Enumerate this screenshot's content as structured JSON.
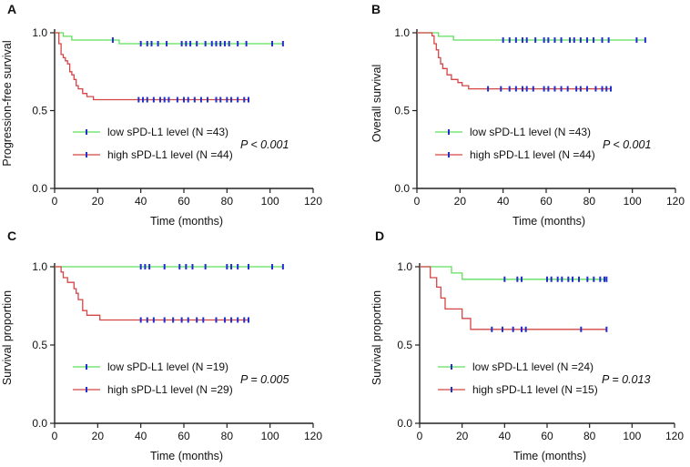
{
  "figure": {
    "colors": {
      "low": "#5de05d",
      "high": "#d64545",
      "censor": "#1f2fd0",
      "axis": "#222222"
    }
  },
  "chart_data": [
    {
      "panel": "A",
      "type": "line",
      "xlabel": "Time (months)",
      "ylabel": "Progression-free survival",
      "xlim": [
        0,
        120
      ],
      "ylim": [
        0,
        1
      ],
      "xticks": [
        "0",
        "20",
        "40",
        "60",
        "80",
        "100",
        "120"
      ],
      "yticks": [
        "0.0",
        "0.5",
        "1.0"
      ],
      "pvalue": "P < 0.001",
      "series": [
        {
          "name": "low sPD-L1 level (N =43)",
          "group": "low",
          "steps": [
            [
              0,
              1.0
            ],
            [
              4,
              0.977
            ],
            [
              8,
              0.953
            ],
            [
              16,
              0.953
            ],
            [
              30,
              0.93
            ],
            [
              106,
              0.93
            ]
          ],
          "censor_x": [
            27,
            40,
            43,
            45,
            48,
            52,
            59,
            61,
            63,
            66,
            70,
            73,
            75,
            77,
            79,
            81,
            85,
            89,
            101,
            106
          ]
        },
        {
          "name": "high sPD-L1 level (N =44)",
          "group": "high",
          "steps": [
            [
              0,
              1.0
            ],
            [
              2,
              0.93
            ],
            [
              3,
              0.86
            ],
            [
              4,
              0.84
            ],
            [
              5,
              0.82
            ],
            [
              6,
              0.8
            ],
            [
              7,
              0.75
            ],
            [
              8,
              0.73
            ],
            [
              9,
              0.7
            ],
            [
              10,
              0.66
            ],
            [
              11,
              0.64
            ],
            [
              13,
              0.61
            ],
            [
              15,
              0.59
            ],
            [
              18,
              0.57
            ],
            [
              25,
              0.57
            ],
            [
              26,
              0.57
            ],
            [
              90,
              0.57
            ]
          ],
          "censor_x": [
            39,
            41,
            43,
            46,
            49,
            51,
            53,
            57,
            60,
            62,
            65,
            68,
            71,
            75,
            77,
            80,
            82,
            85,
            88,
            90
          ]
        }
      ]
    },
    {
      "panel": "B",
      "type": "line",
      "xlabel": "Time (months)",
      "ylabel": "Overall survival",
      "xlim": [
        0,
        120
      ],
      "ylim": [
        0,
        1
      ],
      "xticks": [
        "0",
        "20",
        "40",
        "60",
        "80",
        "100",
        "120"
      ],
      "yticks": [
        "0.0",
        "0.5",
        "1.0"
      ],
      "pvalue": "P < 0.001",
      "series": [
        {
          "name": "low sPD-L1 level (N =43)",
          "group": "low",
          "steps": [
            [
              0,
              1.0
            ],
            [
              10,
              0.977
            ],
            [
              14,
              0.977
            ],
            [
              17,
              0.953
            ],
            [
              106,
              0.953
            ]
          ],
          "censor_x": [
            40,
            43,
            46,
            49,
            51,
            55,
            59,
            61,
            64,
            67,
            71,
            73,
            76,
            79,
            82,
            86,
            89,
            102,
            106
          ]
        },
        {
          "name": "high sPD-L1 level (N =44)",
          "group": "high",
          "steps": [
            [
              0,
              1.0
            ],
            [
              7,
              0.98
            ],
            [
              8,
              0.93
            ],
            [
              9,
              0.89
            ],
            [
              10,
              0.84
            ],
            [
              11,
              0.8
            ],
            [
              12,
              0.77
            ],
            [
              14,
              0.73
            ],
            [
              16,
              0.7
            ],
            [
              19,
              0.68
            ],
            [
              21,
              0.66
            ],
            [
              24,
              0.64
            ],
            [
              90,
              0.64
            ]
          ],
          "censor_x": [
            33,
            39,
            43,
            46,
            49,
            51,
            54,
            59,
            61,
            64,
            67,
            70,
            74,
            76,
            79,
            83,
            86,
            88,
            90
          ]
        }
      ]
    },
    {
      "panel": "C",
      "type": "line",
      "xlabel": "Time (months)",
      "ylabel": "Survival proportion",
      "xlim": [
        0,
        120
      ],
      "ylim": [
        0,
        1
      ],
      "xticks": [
        "0",
        "20",
        "40",
        "60",
        "80",
        "100",
        "120"
      ],
      "yticks": [
        "0.0",
        "0.5",
        "1.0"
      ],
      "pvalue": "P = 0.005",
      "series": [
        {
          "name": "low sPD-L1 level (N =19)",
          "group": "low",
          "steps": [
            [
              0,
              1.0
            ],
            [
              106,
              1.0
            ]
          ],
          "censor_x": [
            40,
            42,
            44,
            51,
            58,
            61,
            64,
            70,
            80,
            82,
            85,
            90,
            101,
            106
          ]
        },
        {
          "name": "high sPD-L1 level (N =29)",
          "group": "high",
          "steps": [
            [
              0,
              1.0
            ],
            [
              3,
              0.966
            ],
            [
              4,
              0.93
            ],
            [
              6,
              0.9
            ],
            [
              9,
              0.86
            ],
            [
              10,
              0.83
            ],
            [
              11,
              0.79
            ],
            [
              13,
              0.72
            ],
            [
              15,
              0.69
            ],
            [
              21,
              0.66
            ],
            [
              90,
              0.66
            ]
          ],
          "censor_x": [
            40,
            43,
            46,
            51,
            55,
            59,
            62,
            66,
            69,
            75,
            79,
            82,
            85,
            88,
            90
          ]
        }
      ]
    },
    {
      "panel": "D",
      "type": "line",
      "xlabel": "Time (months)",
      "ylabel": "Survival proportion",
      "xlim": [
        0,
        120
      ],
      "ylim": [
        0,
        1
      ],
      "xticks": [
        "0",
        "20",
        "40",
        "60",
        "80",
        "100",
        "120"
      ],
      "yticks": [
        "0.0",
        "0.5",
        "1.0"
      ],
      "pvalue": "P = 0.013",
      "series": [
        {
          "name": "low sPD-L1 level (N =24)",
          "group": "low",
          "steps": [
            [
              0,
              1.0
            ],
            [
              15,
              0.96
            ],
            [
              20,
              0.92
            ],
            [
              88,
              0.92
            ]
          ],
          "censor_x": [
            40,
            46,
            48,
            60,
            62,
            65,
            67,
            70,
            72,
            75,
            79,
            82,
            85,
            87,
            88
          ]
        },
        {
          "name": "high sPD-L1 level (N =15)",
          "group": "high",
          "steps": [
            [
              0,
              1.0
            ],
            [
              5,
              0.93
            ],
            [
              8,
              0.87
            ],
            [
              10,
              0.8
            ],
            [
              12,
              0.73
            ],
            [
              20,
              0.67
            ],
            [
              24,
              0.6
            ],
            [
              88,
              0.6
            ]
          ],
          "censor_x": [
            34,
            39,
            44,
            48,
            50,
            76,
            88
          ]
        }
      ]
    }
  ]
}
